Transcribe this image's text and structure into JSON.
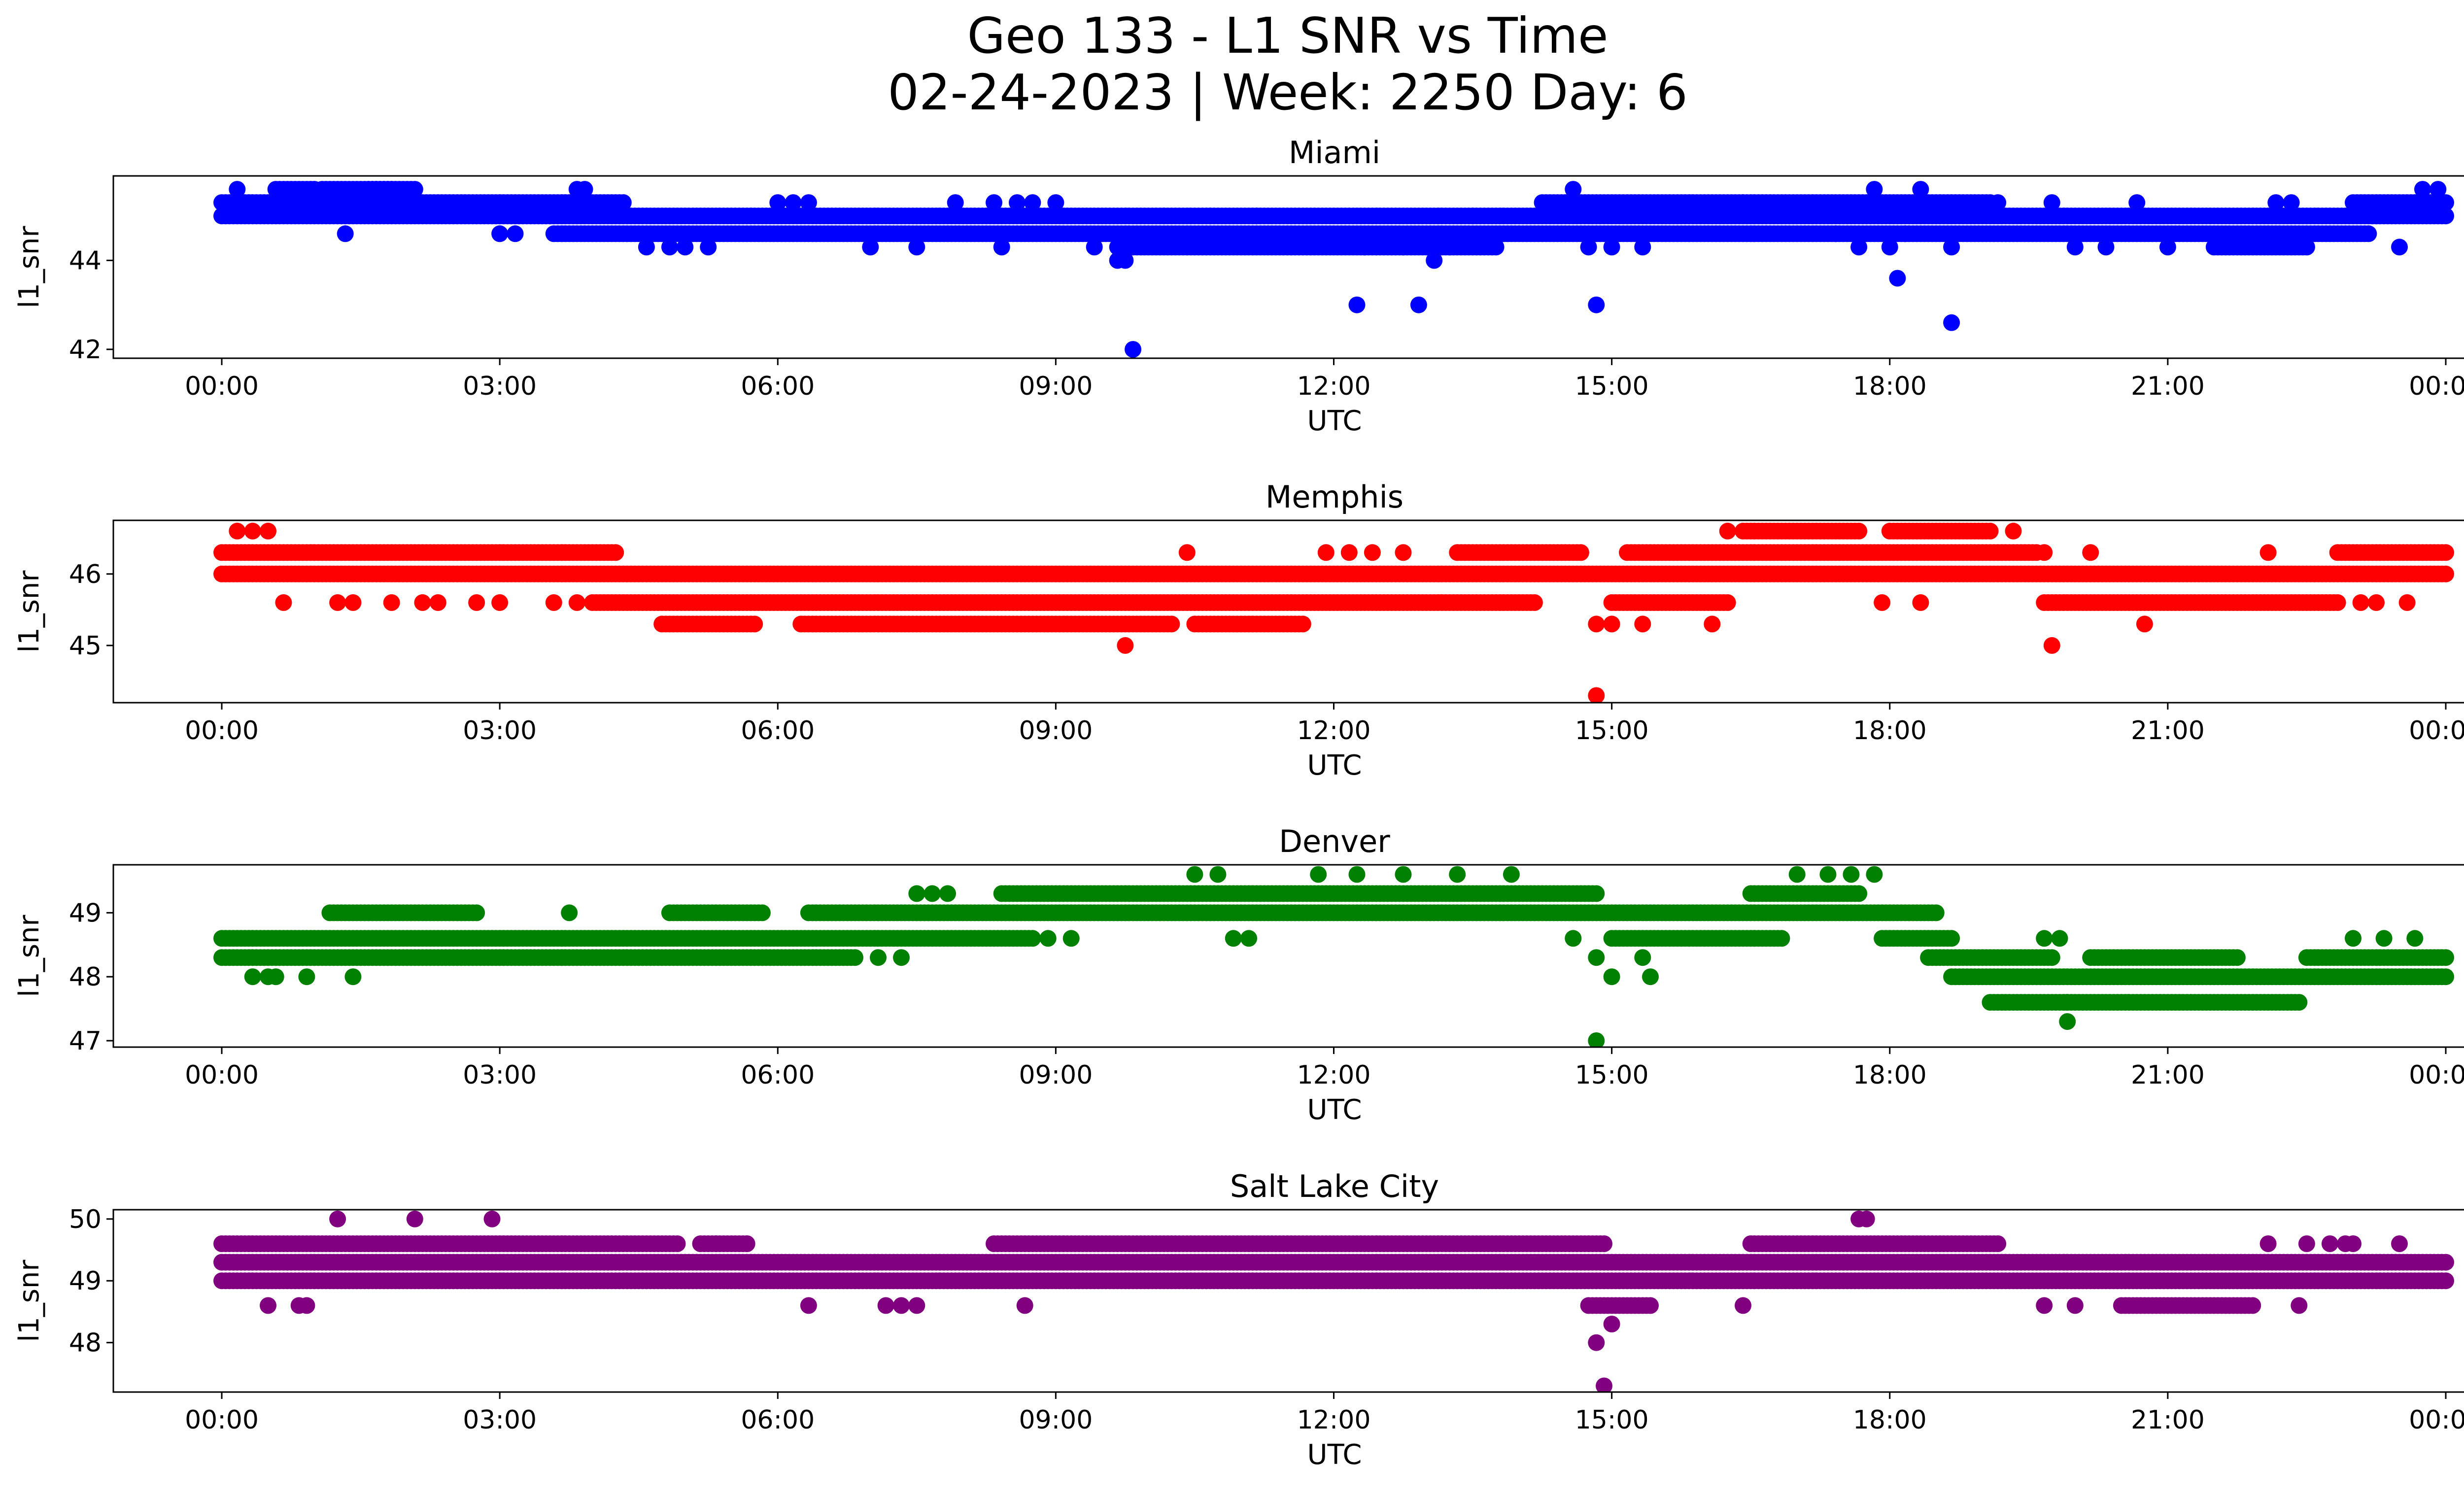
{
  "figure": {
    "title_line1": "Geo 133 - L1 SNR vs Time",
    "title_line2": "02-24-2023 | Week: 2250 Day: 6"
  },
  "chart_data": [
    {
      "type": "scatter",
      "title": "Miami",
      "color": "#0000ff",
      "xlabel": "UTC",
      "ylabel": "l1_snr",
      "xlim": [
        "00:00",
        "24:00"
      ],
      "ylim": [
        41.8,
        45.9
      ],
      "xticks": [
        "00:00",
        "03:00",
        "06:00",
        "09:00",
        "12:00",
        "15:00",
        "18:00",
        "21:00",
        "00:00"
      ],
      "yticks": [
        42,
        44
      ],
      "bands": [
        {
          "y": 45.0,
          "from": "00:00",
          "to": "24:00"
        },
        {
          "y": 45.3,
          "from": "00:00",
          "to": "04:20"
        },
        {
          "y": 45.3,
          "from": "14:15",
          "to": "19:05"
        },
        {
          "y": 45.3,
          "from": "23:00",
          "to": "24:00"
        },
        {
          "y": 45.6,
          "from": "00:35",
          "to": "01:00"
        },
        {
          "y": 45.6,
          "from": "01:05",
          "to": "01:50"
        },
        {
          "y": 45.6,
          "from": "01:35",
          "to": "02:05"
        },
        {
          "y": 44.6,
          "from": "03:35",
          "to": "23:10"
        },
        {
          "y": 44.3,
          "from": "09:40",
          "to": "13:45"
        },
        {
          "y": 44.3,
          "from": "21:30",
          "to": "22:30"
        }
      ],
      "points": [
        [
          "00:10",
          45.6
        ],
        [
          "01:20",
          44.6
        ],
        [
          "03:00",
          44.6
        ],
        [
          "03:10",
          44.6
        ],
        [
          "03:50",
          45.6
        ],
        [
          "03:55",
          45.6
        ],
        [
          "04:35",
          44.3
        ],
        [
          "04:50",
          44.3
        ],
        [
          "05:00",
          44.3
        ],
        [
          "05:15",
          44.3
        ],
        [
          "06:00",
          45.3
        ],
        [
          "06:10",
          45.3
        ],
        [
          "06:20",
          45.3
        ],
        [
          "07:00",
          44.3
        ],
        [
          "07:30",
          44.3
        ],
        [
          "07:55",
          45.3
        ],
        [
          "08:20",
          45.3
        ],
        [
          "08:25",
          44.3
        ],
        [
          "08:35",
          45.3
        ],
        [
          "08:45",
          45.3
        ],
        [
          "09:00",
          45.3
        ],
        [
          "09:25",
          44.3
        ],
        [
          "09:40",
          44.0
        ],
        [
          "09:45",
          44.0
        ],
        [
          "09:50",
          42.0
        ],
        [
          "10:10",
          45.0
        ],
        [
          "10:40",
          45.0
        ],
        [
          "11:10",
          45.0
        ],
        [
          "12:15",
          43.0
        ],
        [
          "12:20",
          44.3
        ],
        [
          "12:45",
          44.3
        ],
        [
          "12:55",
          43.0
        ],
        [
          "13:05",
          44.0
        ],
        [
          "13:15",
          44.3
        ],
        [
          "13:30",
          45.0
        ],
        [
          "14:35",
          45.6
        ],
        [
          "14:45",
          44.3
        ],
        [
          "14:50",
          43.0
        ],
        [
          "15:00",
          44.3
        ],
        [
          "15:20",
          44.3
        ],
        [
          "16:25",
          45.3
        ],
        [
          "17:25",
          44.6
        ],
        [
          "17:40",
          44.3
        ],
        [
          "17:50",
          45.6
        ],
        [
          "18:00",
          44.3
        ],
        [
          "18:05",
          43.6
        ],
        [
          "18:10",
          44.6
        ],
        [
          "18:20",
          45.6
        ],
        [
          "18:40",
          44.3
        ],
        [
          "18:40",
          42.6
        ],
        [
          "19:10",
          45.3
        ],
        [
          "19:45",
          45.3
        ],
        [
          "20:00",
          44.3
        ],
        [
          "20:20",
          44.3
        ],
        [
          "20:40",
          45.3
        ],
        [
          "21:00",
          44.3
        ],
        [
          "22:10",
          45.3
        ],
        [
          "22:20",
          45.3
        ],
        [
          "23:30",
          44.3
        ],
        [
          "23:45",
          45.6
        ],
        [
          "23:55",
          45.6
        ]
      ]
    },
    {
      "type": "scatter",
      "title": "Memphis",
      "color": "#ff0000",
      "xlabel": "UTC",
      "ylabel": "l1_snr",
      "xlim": [
        "00:00",
        "24:00"
      ],
      "ylim": [
        44.2,
        46.75
      ],
      "xticks": [
        "00:00",
        "03:00",
        "06:00",
        "09:00",
        "12:00",
        "15:00",
        "18:00",
        "21:00",
        "00:00"
      ],
      "yticks": [
        45,
        46
      ],
      "bands": [
        {
          "y": 46.0,
          "from": "00:00",
          "to": "24:00"
        },
        {
          "y": 46.3,
          "from": "00:00",
          "to": "04:15"
        },
        {
          "y": 46.3,
          "from": "13:20",
          "to": "14:40"
        },
        {
          "y": 46.3,
          "from": "15:10",
          "to": "19:35"
        },
        {
          "y": 46.3,
          "from": "22:50",
          "to": "24:00"
        },
        {
          "y": 46.6,
          "from": "16:25",
          "to": "17:40"
        },
        {
          "y": 46.6,
          "from": "18:00",
          "to": "19:05"
        },
        {
          "y": 45.6,
          "from": "04:00",
          "to": "14:10"
        },
        {
          "y": 45.6,
          "from": "15:00",
          "to": "16:15"
        },
        {
          "y": 45.6,
          "from": "19:40",
          "to": "22:50"
        },
        {
          "y": 45.3,
          "from": "04:45",
          "to": "05:45"
        },
        {
          "y": 45.3,
          "from": "06:15",
          "to": "10:15"
        },
        {
          "y": 45.3,
          "from": "10:30",
          "to": "11:40"
        }
      ],
      "points": [
        [
          "00:10",
          46.6
        ],
        [
          "00:20",
          46.6
        ],
        [
          "00:30",
          46.6
        ],
        [
          "00:40",
          45.6
        ],
        [
          "01:15",
          45.6
        ],
        [
          "01:25",
          45.6
        ],
        [
          "01:50",
          45.6
        ],
        [
          "02:10",
          45.6
        ],
        [
          "02:20",
          45.6
        ],
        [
          "02:45",
          45.6
        ],
        [
          "03:00",
          45.6
        ],
        [
          "03:35",
          45.6
        ],
        [
          "03:50",
          45.6
        ],
        [
          "09:45",
          45.0
        ],
        [
          "10:25",
          46.3
        ],
        [
          "11:55",
          46.3
        ],
        [
          "12:10",
          46.3
        ],
        [
          "12:25",
          46.3
        ],
        [
          "12:45",
          46.3
        ],
        [
          "14:50",
          45.3
        ],
        [
          "14:50",
          44.3
        ],
        [
          "15:00",
          45.3
        ],
        [
          "15:20",
          45.3
        ],
        [
          "16:05",
          45.3
        ],
        [
          "16:15",
          46.6
        ],
        [
          "17:55",
          45.6
        ],
        [
          "18:20",
          45.6
        ],
        [
          "19:20",
          46.6
        ],
        [
          "19:40",
          46.3
        ],
        [
          "19:45",
          45.0
        ],
        [
          "20:10",
          46.3
        ],
        [
          "20:45",
          45.3
        ],
        [
          "22:05",
          46.3
        ],
        [
          "23:05",
          45.6
        ],
        [
          "23:15",
          45.6
        ],
        [
          "23:35",
          45.6
        ]
      ]
    },
    {
      "type": "scatter",
      "title": "Denver",
      "color": "#008000",
      "xlabel": "UTC",
      "ylabel": "l1_snr",
      "xlim": [
        "00:00",
        "24:00"
      ],
      "ylim": [
        46.9,
        49.75
      ],
      "xticks": [
        "00:00",
        "03:00",
        "06:00",
        "09:00",
        "12:00",
        "15:00",
        "18:00",
        "21:00",
        "00:00"
      ],
      "yticks": [
        47,
        48,
        49
      ],
      "bands": [
        {
          "y": 48.3,
          "from": "00:00",
          "to": "06:50"
        },
        {
          "y": 48.6,
          "from": "00:00",
          "to": "08:45"
        },
        {
          "y": 49.0,
          "from": "01:10",
          "to": "02:45"
        },
        {
          "y": 49.0,
          "from": "04:50",
          "to": "05:50"
        },
        {
          "y": 49.0,
          "from": "06:20",
          "to": "18:30"
        },
        {
          "y": 49.3,
          "from": "08:25",
          "to": "14:50"
        },
        {
          "y": 49.3,
          "from": "16:30",
          "to": "17:40"
        },
        {
          "y": 48.6,
          "from": "15:00",
          "to": "16:50"
        },
        {
          "y": 48.6,
          "from": "17:55",
          "to": "18:40"
        },
        {
          "y": 48.3,
          "from": "18:25",
          "to": "19:45"
        },
        {
          "y": 48.3,
          "from": "20:10",
          "to": "21:45"
        },
        {
          "y": 48.3,
          "from": "22:30",
          "to": "24:00"
        },
        {
          "y": 48.0,
          "from": "18:40",
          "to": "24:00"
        },
        {
          "y": 47.6,
          "from": "19:05",
          "to": "19:55"
        },
        {
          "y": 47.6,
          "from": "19:55",
          "to": "22:25"
        }
      ],
      "points": [
        [
          "00:20",
          48.0
        ],
        [
          "00:30",
          48.0
        ],
        [
          "00:35",
          48.0
        ],
        [
          "00:55",
          48.0
        ],
        [
          "01:25",
          48.0
        ],
        [
          "03:45",
          49.0
        ],
        [
          "07:05",
          48.3
        ],
        [
          "07:20",
          48.3
        ],
        [
          "07:30",
          49.3
        ],
        [
          "07:40",
          49.3
        ],
        [
          "07:50",
          49.3
        ],
        [
          "08:55",
          48.6
        ],
        [
          "09:10",
          48.6
        ],
        [
          "10:30",
          49.6
        ],
        [
          "10:45",
          49.6
        ],
        [
          "10:55",
          48.6
        ],
        [
          "11:05",
          48.6
        ],
        [
          "11:50",
          49.6
        ],
        [
          "12:15",
          49.6
        ],
        [
          "12:45",
          49.6
        ],
        [
          "13:20",
          49.6
        ],
        [
          "13:55",
          49.6
        ],
        [
          "14:35",
          48.6
        ],
        [
          "14:50",
          48.3
        ],
        [
          "14:50",
          47.0
        ],
        [
          "15:00",
          48.0
        ],
        [
          "15:20",
          48.3
        ],
        [
          "15:25",
          48.0
        ],
        [
          "17:00",
          49.6
        ],
        [
          "17:20",
          49.6
        ],
        [
          "17:35",
          49.6
        ],
        [
          "17:50",
          49.6
        ],
        [
          "19:40",
          48.6
        ],
        [
          "19:50",
          48.6
        ],
        [
          "19:55",
          47.3
        ],
        [
          "23:00",
          48.6
        ],
        [
          "23:20",
          48.6
        ],
        [
          "23:40",
          48.6
        ]
      ]
    },
    {
      "type": "scatter",
      "title": "Salt Lake City",
      "color": "#800080",
      "xlabel": "UTC",
      "ylabel": "l1_snr",
      "xlim": [
        "00:00",
        "24:00"
      ],
      "ylim": [
        47.2,
        50.15
      ],
      "xticks": [
        "00:00",
        "03:00",
        "06:00",
        "09:00",
        "12:00",
        "15:00",
        "18:00",
        "21:00",
        "00:00"
      ],
      "yticks": [
        48,
        49,
        50
      ],
      "bands": [
        {
          "y": 49.3,
          "from": "00:00",
          "to": "24:00"
        },
        {
          "y": 49.0,
          "from": "00:00",
          "to": "24:00"
        },
        {
          "y": 49.6,
          "from": "00:00",
          "to": "04:55"
        },
        {
          "y": 49.6,
          "from": "05:10",
          "to": "05:40"
        },
        {
          "y": 49.6,
          "from": "08:20",
          "to": "14:55"
        },
        {
          "y": 49.6,
          "from": "16:30",
          "to": "19:10"
        },
        {
          "y": 48.6,
          "from": "14:45",
          "to": "15:25"
        },
        {
          "y": 48.6,
          "from": "20:30",
          "to": "21:55"
        }
      ],
      "points": [
        [
          "00:30",
          48.6
        ],
        [
          "00:50",
          48.6
        ],
        [
          "00:55",
          48.6
        ],
        [
          "01:15",
          50.0
        ],
        [
          "02:05",
          50.0
        ],
        [
          "02:55",
          50.0
        ],
        [
          "05:20",
          49.6
        ],
        [
          "05:40",
          49.6
        ],
        [
          "06:20",
          48.6
        ],
        [
          "07:10",
          48.6
        ],
        [
          "07:20",
          48.6
        ],
        [
          "07:30",
          48.6
        ],
        [
          "08:40",
          48.6
        ],
        [
          "14:50",
          48.0
        ],
        [
          "14:55",
          47.3
        ],
        [
          "15:00",
          48.3
        ],
        [
          "16:25",
          48.6
        ],
        [
          "17:40",
          50.0
        ],
        [
          "17:45",
          50.0
        ],
        [
          "19:40",
          48.6
        ],
        [
          "20:00",
          48.6
        ],
        [
          "22:05",
          49.6
        ],
        [
          "22:25",
          48.6
        ],
        [
          "22:30",
          49.6
        ],
        [
          "22:45",
          49.6
        ],
        [
          "22:55",
          49.6
        ],
        [
          "23:00",
          49.6
        ],
        [
          "23:30",
          49.6
        ]
      ]
    }
  ]
}
